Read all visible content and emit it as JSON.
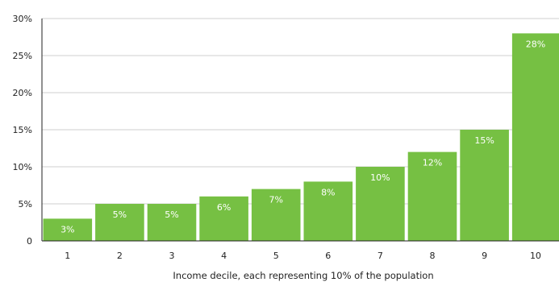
{
  "chart_data": {
    "type": "bar",
    "categories": [
      "1",
      "2",
      "3",
      "4",
      "5",
      "6",
      "7",
      "8",
      "9",
      "10"
    ],
    "values": [
      3,
      5,
      5,
      6,
      7,
      8,
      10,
      12,
      15,
      28
    ],
    "data_labels": [
      "3%",
      "5%",
      "5%",
      "6%",
      "7%",
      "8%",
      "10%",
      "12%",
      "15%",
      "28%"
    ],
    "title": "",
    "xlabel": "Income decile, each representing 10% of the population",
    "ylabel": "",
    "ylim": [
      0,
      30
    ],
    "yticks": [
      0,
      5,
      10,
      15,
      20,
      25,
      30
    ],
    "ytick_labels": [
      "0",
      "5%",
      "10%",
      "15%",
      "20%",
      "25%",
      "30%"
    ],
    "grid": true,
    "legend": "none",
    "colors": {
      "bar": "#76c043",
      "grid": "#cfcfcf",
      "axis": "#222222",
      "label_text": "#ffffff"
    }
  }
}
